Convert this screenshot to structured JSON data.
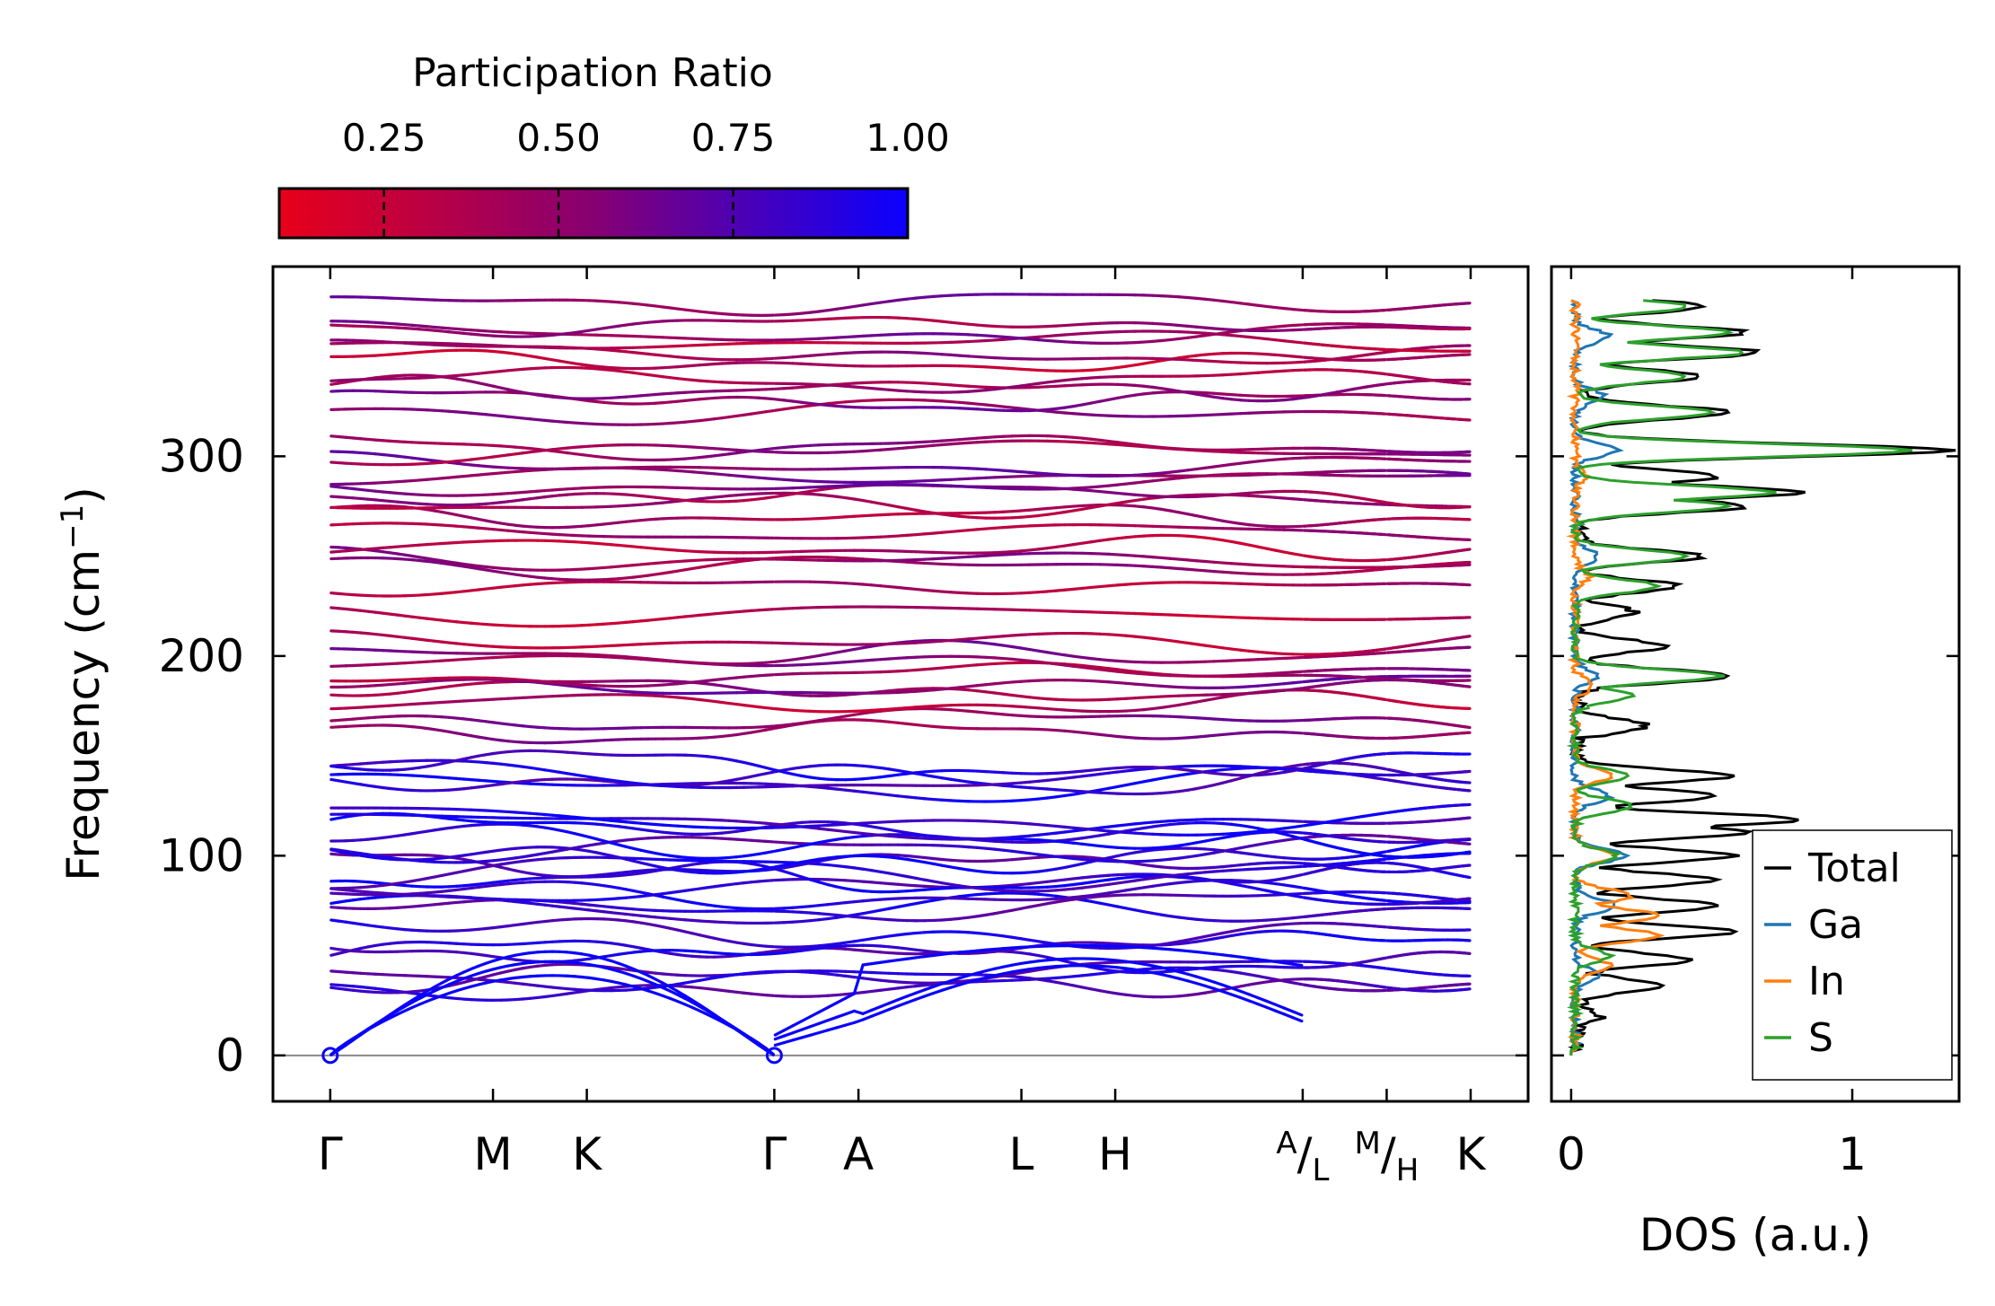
{
  "colors": {
    "cmap_low": "#e8001a",
    "cmap_mid": "#870072",
    "cmap_high": "#0a00ff",
    "total": "#000000",
    "ga": "#1f77b4",
    "in": "#ff7f0e",
    "s": "#2ca02c"
  },
  "chart_data": [
    {
      "type": "line",
      "name": "phonon_band_structure",
      "ylabel": "Frequency (cm⁻¹)",
      "ylabel_parts": {
        "base": "Frequency (cm",
        "sup": "−1",
        "close": ")"
      },
      "ylim": [
        -23,
        395
      ],
      "yticks": [
        0,
        100,
        200,
        300
      ],
      "kpath": [
        {
          "label": "Γ",
          "x": 0.0
        },
        {
          "label": "M",
          "x": 0.909
        },
        {
          "label": "K",
          "x": 1.433
        },
        {
          "label": "Γ",
          "x": 2.48
        },
        {
          "label": "A",
          "x": 2.95
        },
        {
          "label": "L",
          "x": 3.86
        },
        {
          "label": "H",
          "x": 4.384
        },
        {
          "label": "A|L",
          "x": 5.431,
          "top": "A",
          "bottom": "L"
        },
        {
          "label": "M|H",
          "x": 5.9,
          "top": "M",
          "bottom": "H"
        },
        {
          "label": "K",
          "x": 6.369
        }
      ],
      "xlim": [
        -0.32,
        6.69
      ],
      "segments": [
        {
          "from": 0,
          "to": 3
        },
        {
          "from": 3,
          "to": 7
        },
        {
          "from": 7,
          "to": 8
        },
        {
          "from": 8,
          "to": 9
        }
      ],
      "optical_bands_at_gamma_cm-1": [
        35,
        38,
        41,
        50,
        54,
        62,
        73,
        76,
        80,
        84,
        88,
        92,
        96,
        100,
        104,
        108,
        112,
        116,
        118,
        135,
        138,
        141,
        145,
        162,
        168,
        176,
        183,
        186,
        190,
        195,
        201,
        207,
        221,
        235,
        245,
        248,
        254,
        262,
        270,
        276,
        281,
        286,
        290,
        296,
        302,
        305,
        322,
        328,
        334,
        338,
        348,
        352,
        357,
        362,
        366,
        377
      ],
      "participation_ratio_note": "high-frequency bands ~0.3-0.5 (red/purple); below 150 cm-1 ~0.7-1.0 (blue)"
    },
    {
      "type": "line",
      "name": "density_of_states",
      "xlabel": "DOS (a.u.)",
      "xticks": [
        0,
        1
      ],
      "xlim": [
        -0.07,
        1.38
      ],
      "ylim": [
        -23,
        395
      ],
      "legend_position": "lower-right",
      "series": [
        {
          "name": "Total",
          "peaks": [
            [
              0,
              0.0
            ],
            [
              20,
              0.08
            ],
            [
              35,
              0.3
            ],
            [
              48,
              0.4
            ],
            [
              62,
              0.55
            ],
            [
              75,
              0.5
            ],
            [
              88,
              0.48
            ],
            [
              100,
              0.55
            ],
            [
              112,
              0.6
            ],
            [
              118,
              0.8
            ],
            [
              130,
              0.5
            ],
            [
              140,
              0.55
            ],
            [
              165,
              0.25
            ],
            [
              190,
              0.55
            ],
            [
              205,
              0.3
            ],
            [
              222,
              0.2
            ],
            [
              235,
              0.35
            ],
            [
              250,
              0.45
            ],
            [
              275,
              0.6
            ],
            [
              282,
              0.8
            ],
            [
              290,
              0.5
            ],
            [
              303,
              1.32
            ],
            [
              322,
              0.55
            ],
            [
              340,
              0.45
            ],
            [
              352,
              0.65
            ],
            [
              362,
              0.6
            ],
            [
              375,
              0.45
            ]
          ]
        },
        {
          "name": "Ga",
          "peaks": [
            [
              40,
              0.08
            ],
            [
              75,
              0.15
            ],
            [
              100,
              0.18
            ],
            [
              130,
              0.12
            ],
            [
              190,
              0.08
            ],
            [
              250,
              0.08
            ],
            [
              303,
              0.15
            ],
            [
              330,
              0.1
            ],
            [
              360,
              0.12
            ]
          ]
        },
        {
          "name": "In",
          "peaks": [
            [
              45,
              0.12
            ],
            [
              60,
              0.3
            ],
            [
              70,
              0.3
            ],
            [
              80,
              0.2
            ],
            [
              100,
              0.15
            ],
            [
              140,
              0.12
            ],
            [
              185,
              0.06
            ],
            [
              240,
              0.05
            ],
            [
              290,
              0.04
            ]
          ]
        },
        {
          "name": "S",
          "peaks": [
            [
              50,
              0.12
            ],
            [
              100,
              0.15
            ],
            [
              125,
              0.2
            ],
            [
              140,
              0.18
            ],
            [
              180,
              0.2
            ],
            [
              190,
              0.52
            ],
            [
              235,
              0.3
            ],
            [
              250,
              0.4
            ],
            [
              275,
              0.55
            ],
            [
              282,
              0.7
            ],
            [
              303,
              1.2
            ],
            [
              322,
              0.5
            ],
            [
              340,
              0.4
            ],
            [
              352,
              0.6
            ],
            [
              362,
              0.55
            ],
            [
              375,
              0.4
            ]
          ]
        }
      ]
    }
  ],
  "colorbar": {
    "title": "Participation Ratio",
    "range": [
      0.1,
      1.0
    ],
    "ticks": [
      0.25,
      0.5,
      0.75,
      1.0
    ],
    "tick_labels": [
      "0.25",
      "0.50",
      "0.75",
      "1.00"
    ]
  },
  "dos_panel": {
    "xlabel": "DOS (a.u.)",
    "tick_labels": [
      "0",
      "1"
    ],
    "legend": [
      "Total",
      "Ga",
      "In",
      "S"
    ]
  },
  "band_panel": {
    "ytick_labels": [
      "0",
      "100",
      "200",
      "300"
    ]
  }
}
